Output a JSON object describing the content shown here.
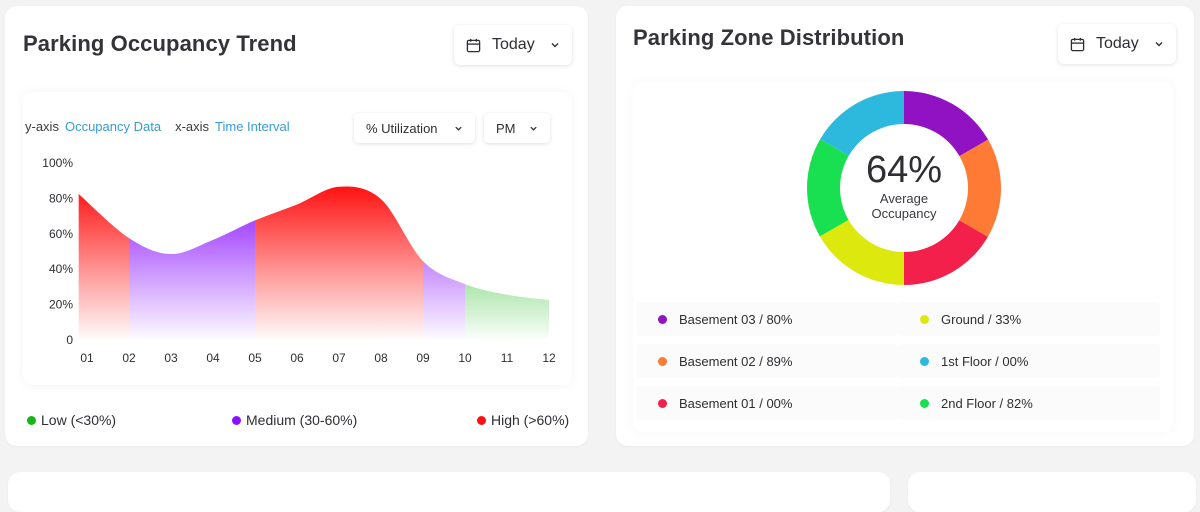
{
  "occupancy_card": {
    "title": "Parking Occupancy Trend",
    "date_button": {
      "label": "Today",
      "icon": "calendar-icon"
    },
    "y_axis_key": "y-axis",
    "y_axis_value": "Occupancy Data",
    "x_axis_key": "x-axis",
    "x_axis_value": "Time Interval",
    "utilization_select": "% Utilization",
    "period_select": "PM",
    "legend": [
      {
        "label": "Low  (<30%)",
        "color": "#14b814"
      },
      {
        "label": "Medium  (30-60%)",
        "color": "#8a10ff"
      },
      {
        "label": "High  (>60%)",
        "color": "#ff1010"
      }
    ]
  },
  "zone_card": {
    "title": "Parking Zone Distribution",
    "date_button": {
      "label": "Today",
      "icon": "calendar-icon"
    },
    "center_value": "64%",
    "center_label_1": "Average",
    "center_label_2": "Occupancy",
    "zones": [
      {
        "label": "Basement 03 / 80%",
        "color": "#9112c2"
      },
      {
        "label": "Ground / 33%",
        "color": "#dde80e"
      },
      {
        "label": "Basement 02 / 89%",
        "color": "#ff7a35"
      },
      {
        "label": "1st Floor / 00%",
        "color": "#2db8dd"
      },
      {
        "label": "Basement 01 / 00%",
        "color": "#f2204a"
      },
      {
        "label": "2nd Floor / 82%",
        "color": "#18e050"
      }
    ]
  },
  "chart_data": [
    {
      "type": "area",
      "title": "Parking Occupancy Trend",
      "xlabel": "Time Interval",
      "ylabel": "Occupancy Data",
      "categories": [
        "01",
        "02",
        "03",
        "04",
        "05",
        "06",
        "07",
        "08",
        "09",
        "10",
        "11",
        "12"
      ],
      "x": [
        0.8,
        2,
        3,
        4,
        5,
        6,
        7,
        8,
        9,
        10,
        11,
        12
      ],
      "values": [
        82,
        57,
        48,
        56,
        67,
        76,
        86,
        79,
        44,
        31,
        25,
        22
      ],
      "y_ticks": [
        "0",
        "20%",
        "40%",
        "60%",
        "80%",
        "100%"
      ],
      "ylim": [
        0,
        100
      ],
      "bands": [
        {
          "name": "High",
          "from": 0.8,
          "to": 2,
          "color": "#ff1010"
        },
        {
          "name": "Medium",
          "from": 2,
          "to": 5,
          "color": "#8a10ff"
        },
        {
          "name": "High",
          "from": 5,
          "to": 9,
          "color": "#ff1010"
        },
        {
          "name": "Medium",
          "from": 9,
          "to": 10,
          "color": "#8a10ff"
        },
        {
          "name": "Low",
          "from": 10,
          "to": 12,
          "color": "#14b814"
        }
      ],
      "grid": false
    },
    {
      "type": "pie",
      "title": "Parking Zone Distribution",
      "center_value": "64%",
      "slices": [
        {
          "name": "Basement 03",
          "share": 16.7,
          "color": "#9112c2"
        },
        {
          "name": "Basement 02",
          "share": 16.7,
          "color": "#ff7a35"
        },
        {
          "name": "Basement 01",
          "share": 16.6,
          "color": "#f2204a"
        },
        {
          "name": "Ground",
          "share": 16.7,
          "color": "#dde80e"
        },
        {
          "name": "2nd Floor",
          "share": 16.7,
          "color": "#18e050"
        },
        {
          "name": "1st Floor",
          "share": 16.6,
          "color": "#2db8dd"
        }
      ]
    }
  ]
}
